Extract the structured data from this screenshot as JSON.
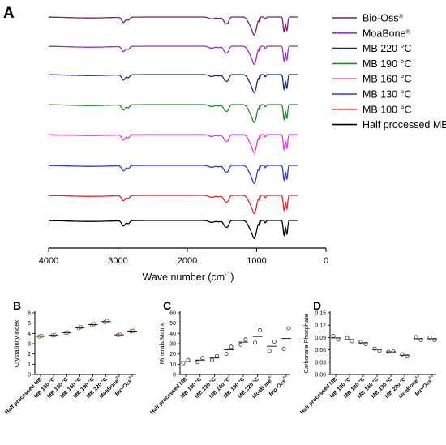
{
  "chart_data": [
    {
      "panel_label": "A",
      "type": "line",
      "xlabel_main": "Wave number (cm",
      "xlabel_sup": "-1",
      "xlabel_tail": ")",
      "xlim": [
        4000,
        0
      ],
      "x_ticks": [
        "4000",
        "3000",
        "2000",
        "1000",
        "0"
      ],
      "series": [
        {
          "name": "Bio-Oss",
          "sup": "®",
          "color": "#7b1f6e"
        },
        {
          "name": "MoaBone",
          "sup": "®",
          "color": "#9b2fc9"
        },
        {
          "name": "MB 220 °C",
          "sup": "",
          "color": "#1a2a78"
        },
        {
          "name": "MB 190 °C",
          "sup": "",
          "color": "#1f8a2a"
        },
        {
          "name": "MB 160 °C",
          "sup": "",
          "color": "#e535e0"
        },
        {
          "name": "MB 130 °C",
          "sup": "",
          "color": "#2b3ad8"
        },
        {
          "name": "MB 100 °C",
          "sup": "",
          "color": "#e02a2a"
        },
        {
          "name": "Half processed MB",
          "sup": "",
          "color": "#000000"
        }
      ]
    },
    {
      "panel_label": "B",
      "type": "scatter",
      "ylabel": "Crystallinity index",
      "ylim": [
        0,
        6
      ],
      "y_ticks": [
        "0",
        "1",
        "2",
        "3",
        "4",
        "5",
        "6"
      ],
      "categories": [
        {
          "name": "Half processed MB",
          "sup": ""
        },
        {
          "name": "MB 100 °C",
          "sup": ""
        },
        {
          "name": "MB 130 °C",
          "sup": ""
        },
        {
          "name": "MB 160 °C",
          "sup": ""
        },
        {
          "name": "MB 190 °C",
          "sup": ""
        },
        {
          "name": "MB 220 °C",
          "sup": ""
        },
        {
          "name": "MoaBone",
          "sup": "®"
        },
        {
          "name": "Bio-Oss",
          "sup": "®"
        }
      ],
      "points": [
        [
          3.7,
          3.75
        ],
        [
          3.8,
          3.82
        ],
        [
          4.05,
          4.1
        ],
        [
          4.5,
          4.6
        ],
        [
          4.8,
          4.9
        ],
        [
          5.1,
          5.2
        ],
        [
          3.85,
          3.88
        ],
        [
          4.2,
          4.25
        ]
      ],
      "means": [
        3.72,
        3.81,
        4.08,
        4.55,
        4.85,
        5.15,
        3.86,
        4.22
      ]
    },
    {
      "panel_label": "C",
      "type": "scatter",
      "ylabel": "Minerals:Matrix",
      "ylim": [
        0,
        60
      ],
      "y_ticks": [
        "0",
        "10",
        "20",
        "30",
        "40",
        "50",
        "60"
      ],
      "categories": [
        {
          "name": "Half processed MB",
          "sup": ""
        },
        {
          "name": "MB 100 °C",
          "sup": ""
        },
        {
          "name": "MB 130 °C",
          "sup": ""
        },
        {
          "name": "MB 160 °C",
          "sup": ""
        },
        {
          "name": "MB 190 °C",
          "sup": ""
        },
        {
          "name": "MB 220 °C",
          "sup": ""
        },
        {
          "name": "MoaBone",
          "sup": "®"
        },
        {
          "name": "Bio-Oss",
          "sup": "®"
        }
      ],
      "points": [
        [
          11,
          14
        ],
        [
          12,
          16
        ],
        [
          14,
          18
        ],
        [
          20,
          27
        ],
        [
          29,
          34
        ],
        [
          31,
          43
        ],
        [
          23,
          32
        ],
        [
          25,
          45
        ]
      ],
      "means": [
        12.5,
        14,
        16,
        24,
        31.5,
        37,
        27.5,
        35
      ]
    },
    {
      "panel_label": "D",
      "type": "scatter",
      "ylabel": "Carbonate:Phosphate",
      "ylim": [
        0,
        0.15
      ],
      "y_ticks": [
        "0.00",
        "0.03",
        "0.06",
        "0.09",
        "0.12",
        "0.15"
      ],
      "categories": [
        {
          "name": "Half processed MB",
          "sup": ""
        },
        {
          "name": "MB 100 °C",
          "sup": ""
        },
        {
          "name": "MB 130 °C",
          "sup": ""
        },
        {
          "name": "MB 160 °C",
          "sup": ""
        },
        {
          "name": "MB 190 °C",
          "sup": ""
        },
        {
          "name": "MB 220 °C",
          "sup": ""
        },
        {
          "name": "MoaBone",
          "sup": "®"
        },
        {
          "name": "Bio-Oss",
          "sup": "®"
        }
      ],
      "points": [
        [
          0.094,
          0.085
        ],
        [
          0.089,
          0.081
        ],
        [
          0.079,
          0.074
        ],
        [
          0.063,
          0.058
        ],
        [
          0.055,
          0.056
        ],
        [
          0.049,
          0.044
        ],
        [
          0.091,
          0.084
        ],
        [
          0.09,
          0.084
        ]
      ],
      "means": [
        0.089,
        0.085,
        0.077,
        0.061,
        0.055,
        0.047,
        0.087,
        0.087
      ]
    }
  ]
}
